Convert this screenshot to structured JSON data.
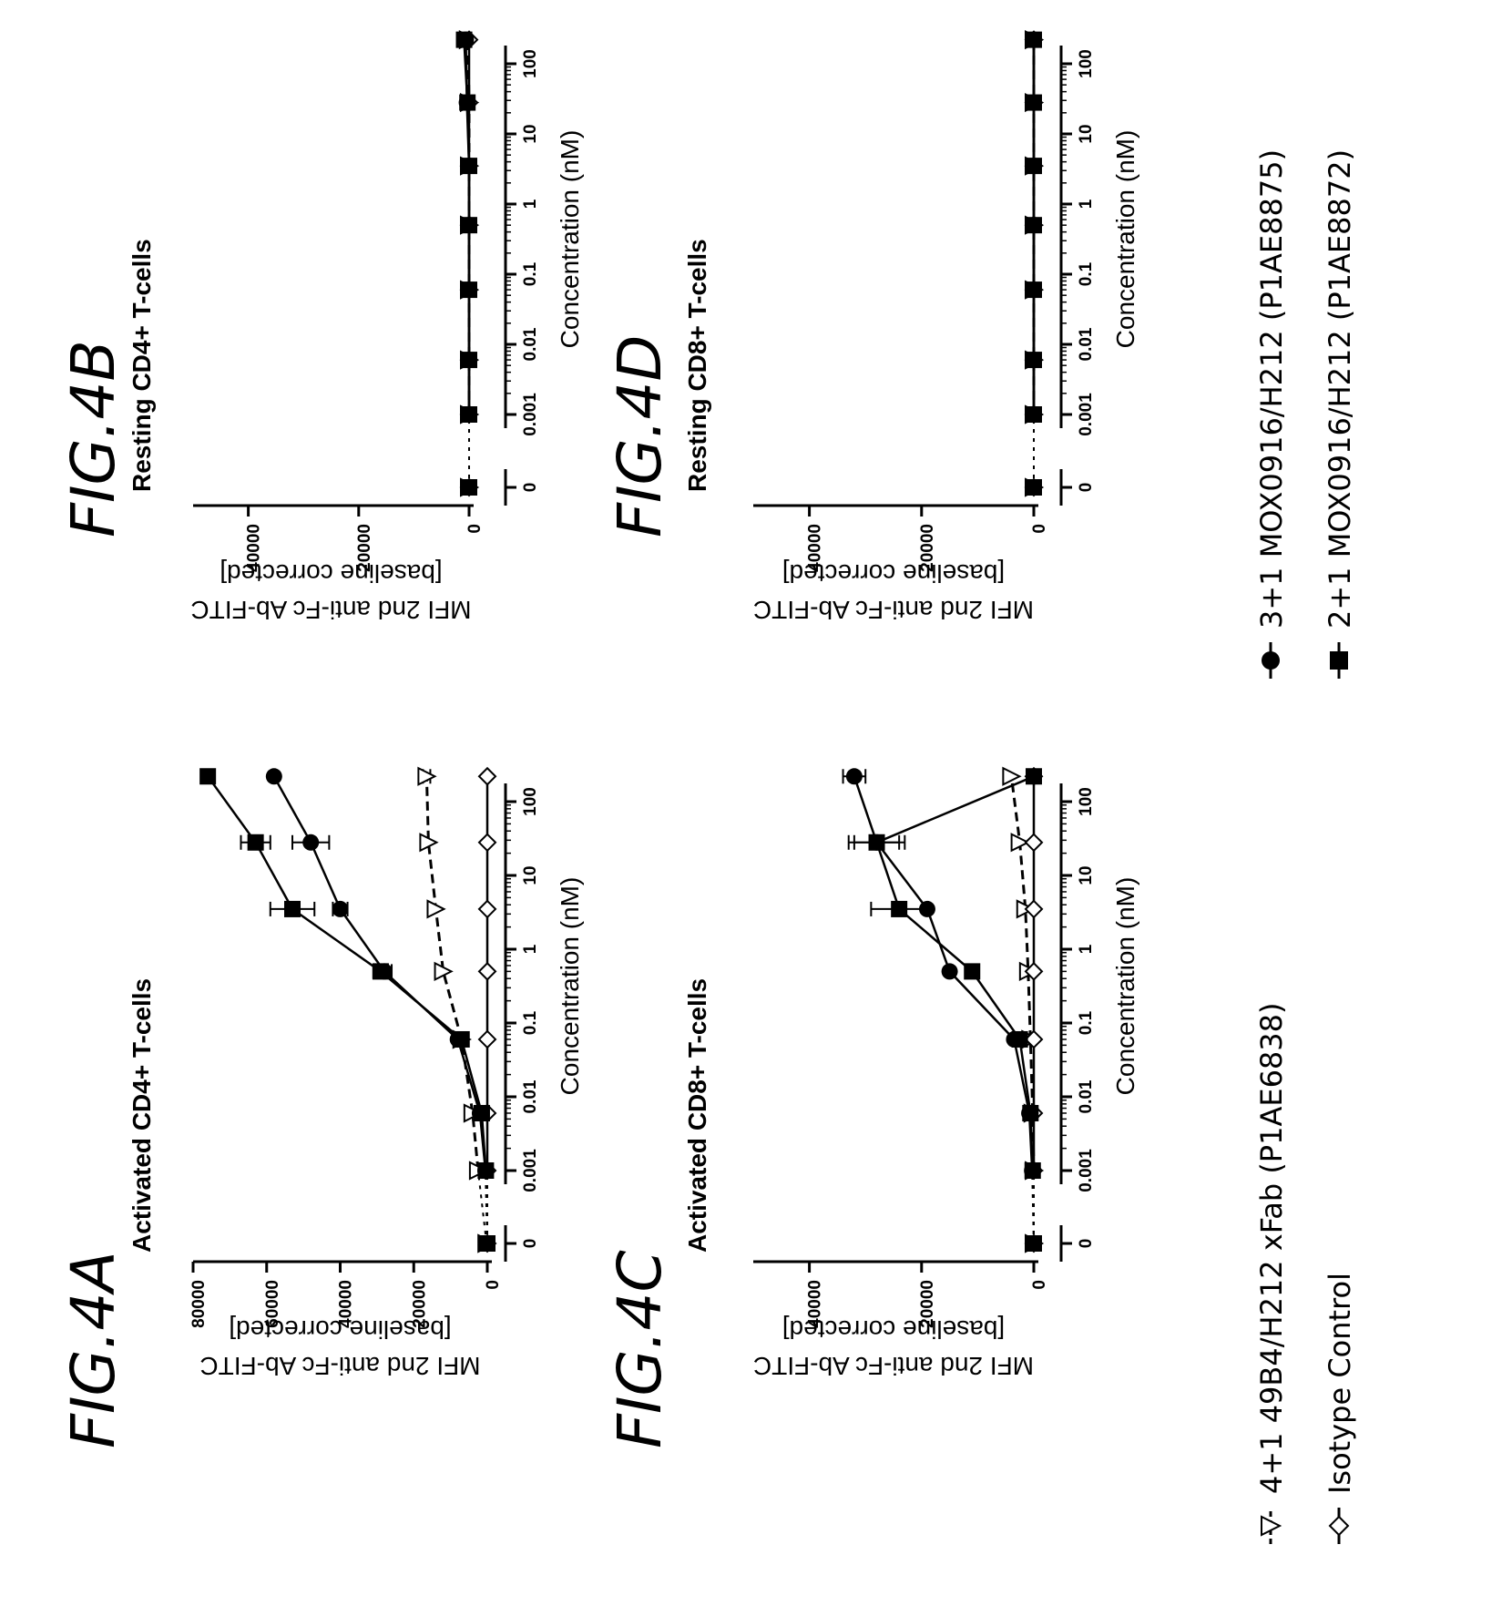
{
  "chart_data": [
    {
      "id": "A",
      "panel_label": "FIG.4A",
      "type": "scatter",
      "title": "Activated  CD4+ T-cells",
      "xlabel": "Concentration (nM)",
      "ylabel": "MFI 2nd anti-Fc Ab-FITC",
      "ylabel_2": "[baseline corrected]",
      "x_scale": "log with 0 on broken segment",
      "x_ticks": [
        "0",
        "0.001",
        "0.01",
        "0.1",
        "1",
        "10",
        "100"
      ],
      "y_ticks": [
        0,
        20000,
        40000,
        60000,
        80000
      ],
      "ylim": [
        0,
        80000
      ],
      "x": [
        0,
        0.001,
        0.006,
        0.06,
        0.5,
        3.5,
        28,
        220
      ],
      "series": [
        {
          "key": "4+1 49B4/H212 xFab (P1AE6838)",
          "marker": "triangle-open",
          "line": "dashed",
          "values": [
            200,
            2500,
            4000,
            7000,
            12000,
            14000,
            16000,
            16500
          ],
          "errors": [
            0,
            0,
            0,
            0,
            0,
            0,
            0,
            1000
          ]
        },
        {
          "key": "Isotype Control",
          "marker": "diamond-open",
          "line": "solid",
          "values": [
            0,
            0,
            0,
            0,
            0,
            0,
            0,
            0
          ],
          "errors": [
            0,
            0,
            0,
            0,
            0,
            0,
            0,
            0
          ]
        },
        {
          "key": "3+1 MOX0916/H212 (P1AE8875)",
          "marker": "circle-filled",
          "line": "solid",
          "values": [
            0,
            500,
            2000,
            8000,
            28000,
            40000,
            48000,
            58000
          ],
          "errors": [
            0,
            0,
            0,
            0,
            2000,
            2000,
            5000,
            0
          ]
        },
        {
          "key": "2+1 MOX0916/H212 (P1AE8872)",
          "marker": "square-filled",
          "line": "solid",
          "values": [
            0,
            400,
            1500,
            7000,
            29000,
            53000,
            63000,
            76000
          ],
          "errors": [
            0,
            0,
            0,
            0,
            2000,
            6000,
            4000,
            1000
          ]
        }
      ]
    },
    {
      "id": "B",
      "panel_label": "FIG.4B",
      "type": "scatter",
      "title": "Resting  CD4+ T-cells",
      "xlabel": "Concentration (nM)",
      "ylabel": "MFI 2nd anti-Fc Ab-FITC",
      "ylabel_2": "[baseline corrected]",
      "x_scale": "log with 0 on broken segment",
      "x_ticks": [
        "0",
        "0.001",
        "0.01",
        "0.1",
        "1",
        "10",
        "100"
      ],
      "y_ticks": [
        0,
        20000,
        40000
      ],
      "ylim": [
        0,
        50000
      ],
      "x": [
        0,
        0.001,
        0.006,
        0.06,
        0.5,
        3.5,
        28,
        220
      ],
      "series": [
        {
          "key": "4+1 49B4/H212 xFab (P1AE6838)",
          "marker": "triangle-open",
          "line": "dashed",
          "values": [
            0,
            0,
            0,
            0,
            0,
            0,
            0,
            200
          ],
          "errors": [
            0,
            0,
            0,
            0,
            0,
            0,
            0,
            0
          ]
        },
        {
          "key": "Isotype Control",
          "marker": "diamond-open",
          "line": "solid",
          "values": [
            0,
            0,
            0,
            0,
            0,
            0,
            0,
            0
          ],
          "errors": [
            0,
            0,
            0,
            0,
            0,
            0,
            0,
            0
          ]
        },
        {
          "key": "3+1 MOX0916/H212 (P1AE8875)",
          "marker": "circle-filled",
          "line": "solid",
          "values": [
            0,
            0,
            0,
            0,
            0,
            0,
            400,
            600
          ],
          "errors": [
            0,
            0,
            0,
            0,
            0,
            0,
            0,
            0
          ]
        },
        {
          "key": "2+1 MOX0916/H212 (P1AE8872)",
          "marker": "square-filled",
          "line": "solid",
          "values": [
            0,
            0,
            0,
            0,
            0,
            0,
            300,
            900
          ],
          "errors": [
            0,
            0,
            0,
            0,
            0,
            0,
            0,
            0
          ]
        }
      ]
    },
    {
      "id": "C",
      "panel_label": "FIG.4C",
      "type": "scatter",
      "title": "Activated  CD8+ T-cells",
      "xlabel": "Concentration (nM)",
      "ylabel": "MFI 2nd anti-Fc Ab-FITC",
      "ylabel_2": "[baseline corrected]",
      "x_scale": "log with 0 on broken segment",
      "x_ticks": [
        "0",
        "0.001",
        "0.01",
        "0.1",
        "1",
        "10",
        "100"
      ],
      "y_ticks": [
        0,
        20000,
        40000
      ],
      "ylim": [
        0,
        50000
      ],
      "x": [
        0,
        0.001,
        0.006,
        0.06,
        0.5,
        3.5,
        28,
        220
      ],
      "series": [
        {
          "key": "4+1 49B4/H212 xFab (P1AE6838)",
          "marker": "triangle-open",
          "line": "dashed",
          "values": [
            0,
            0,
            200,
            600,
            1000,
            1500,
            2500,
            4000
          ],
          "errors": [
            0,
            0,
            0,
            0,
            0,
            0,
            0,
            0
          ]
        },
        {
          "key": "Isotype Control",
          "marker": "diamond-open",
          "line": "solid",
          "values": [
            0,
            0,
            0,
            0,
            0,
            0,
            0,
            0
          ],
          "errors": [
            0,
            0,
            0,
            0,
            0,
            0,
            0,
            0
          ]
        },
        {
          "key": "3+1 MOX0916/H212 (P1AE8875)",
          "marker": "circle-filled",
          "line": "solid",
          "values": [
            0,
            300,
            800,
            3500,
            15000,
            19000,
            28000,
            32000
          ],
          "errors": [
            0,
            0,
            0,
            0,
            0,
            0,
            4000,
            2000
          ]
        },
        {
          "key": "2+1 MOX0916/H212 (P1AE8872)",
          "marker": "square-filled",
          "line": "solid",
          "values": [
            0,
            200,
            600,
            2500,
            11000,
            24000,
            28000,
            0
          ],
          "errors": [
            0,
            0,
            0,
            0,
            0,
            5000,
            5000,
            0
          ]
        }
      ]
    },
    {
      "id": "D",
      "panel_label": "FIG.4D",
      "type": "scatter",
      "title": "Resting  CD8+ T-cells",
      "xlabel": "Concentration (nM)",
      "ylabel": "MFI 2nd anti-Fc Ab-FITC",
      "ylabel_2": "[baseline corrected]",
      "x_scale": "log with 0 on broken segment",
      "x_ticks": [
        "0",
        "0.001",
        "0.01",
        "0.1",
        "1",
        "10",
        "100"
      ],
      "y_ticks": [
        0,
        20000,
        40000
      ],
      "ylim": [
        0,
        50000
      ],
      "x": [
        0,
        0.001,
        0.006,
        0.06,
        0.5,
        3.5,
        28,
        220
      ],
      "series": [
        {
          "key": "4+1 49B4/H212 xFab (P1AE6838)",
          "marker": "triangle-open",
          "line": "dashed",
          "values": [
            0,
            0,
            0,
            0,
            0,
            0,
            0,
            0
          ],
          "errors": [
            0,
            0,
            0,
            0,
            0,
            0,
            0,
            0
          ]
        },
        {
          "key": "Isotype Control",
          "marker": "diamond-open",
          "line": "solid",
          "values": [
            0,
            0,
            0,
            0,
            0,
            0,
            0,
            0
          ],
          "errors": [
            0,
            0,
            0,
            0,
            0,
            0,
            0,
            0
          ]
        },
        {
          "key": "3+1 MOX0916/H212 (P1AE8875)",
          "marker": "circle-filled",
          "line": "solid",
          "values": [
            0,
            0,
            0,
            0,
            0,
            0,
            0,
            0
          ],
          "errors": [
            0,
            0,
            0,
            0,
            0,
            0,
            0,
            0
          ]
        },
        {
          "key": "2+1 MOX0916/H212 (P1AE8872)",
          "marker": "square-filled",
          "line": "solid",
          "values": [
            0,
            0,
            0,
            0,
            0,
            0,
            0,
            0
          ],
          "errors": [
            0,
            0,
            0,
            0,
            0,
            0,
            0,
            0
          ]
        }
      ]
    }
  ],
  "legend": {
    "placement": "bottom, rotated",
    "items": [
      {
        "key": "4+1 49B4/H212 xFab (P1AE6838)",
        "label": "4+1 49B4/H212 xFab (P1AE6838)",
        "marker": "triangle-open",
        "line": "dashed"
      },
      {
        "key": "Isotype Control",
        "label": "Isotype Control",
        "marker": "diamond-open",
        "line": "solid"
      },
      {
        "key": "3+1 MOX0916/H212 (P1AE8875)",
        "label": "3+1 MOX0916/H212 (P1AE8875)",
        "marker": "circle-filled",
        "line": "solid"
      },
      {
        "key": "2+1 MOX0916/H212 (P1AE8872)",
        "label": "2+1 MOX0916/H212 (P1AE8872)",
        "marker": "square-filled",
        "line": "solid"
      }
    ]
  }
}
